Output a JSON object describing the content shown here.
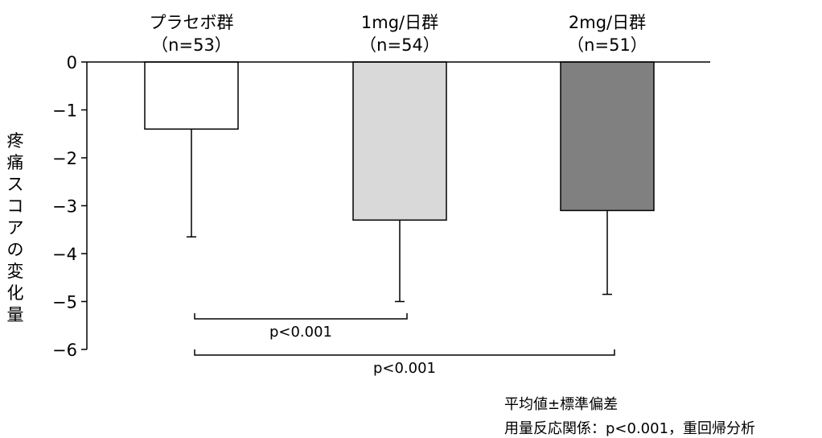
{
  "chart_data": {
    "type": "bar",
    "categories": [
      {
        "line1": "プラセボ群",
        "line2": "（n=53）"
      },
      {
        "line1": "1mg/日群",
        "line2": "（n=54）"
      },
      {
        "line1": "2mg/日群",
        "line2": "（n=51）"
      }
    ],
    "values": [
      -1.4,
      -3.3,
      -3.1
    ],
    "error_lower": [
      -3.65,
      -5.0,
      -4.85
    ],
    "bar_colors": [
      "#ffffff",
      "#d9d9d9",
      "#808080"
    ],
    "ylabel": "疼痛スコアの変化量",
    "ylim": [
      -6,
      0
    ],
    "yticks": [
      0,
      -1,
      -2,
      -3,
      -4,
      -5,
      -6
    ],
    "ytick_labels": [
      "0",
      "−1",
      "−2",
      "−3",
      "−4",
      "−5",
      "−6"
    ],
    "grid": false,
    "significance": [
      {
        "from": 0,
        "to": 1,
        "label": "p<0.001"
      },
      {
        "from": 0,
        "to": 2,
        "label": "p<0.001"
      }
    ]
  },
  "footnotes": {
    "line1": "平均値±標準偏差",
    "line2": "用量反応関係：p<0.001，重回帰分析"
  }
}
